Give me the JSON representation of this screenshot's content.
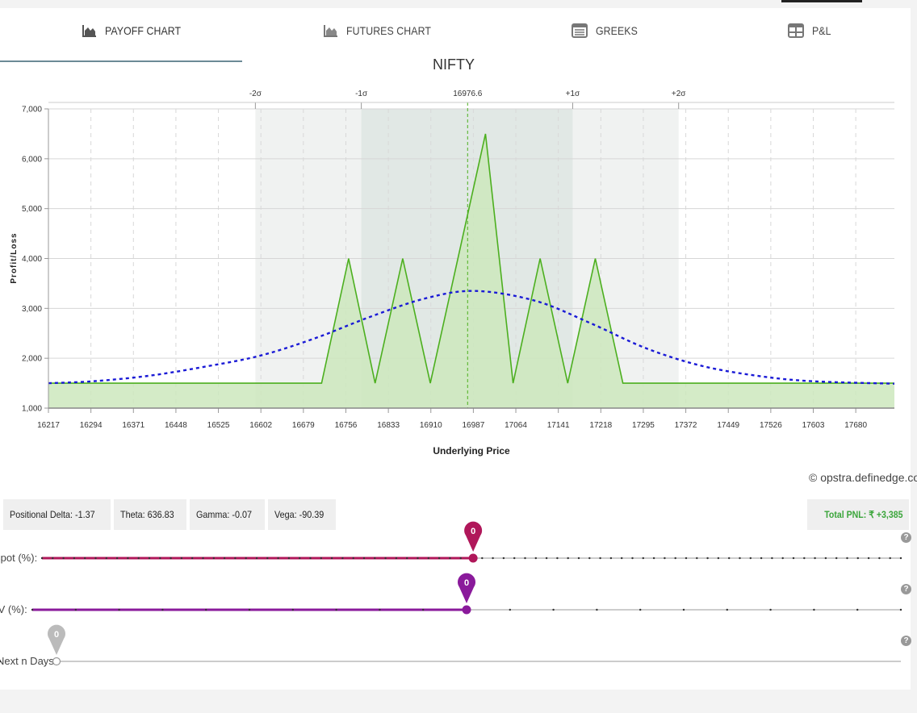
{
  "tabs": [
    {
      "label": "PAYOFF CHART",
      "icon": "area-chart-icon",
      "active": true
    },
    {
      "label": "FUTURES CHART",
      "icon": "area-chart-icon",
      "active": false
    },
    {
      "label": "GREEKS",
      "icon": "table-icon",
      "active": false
    },
    {
      "label": "P&L",
      "icon": "grid-icon",
      "active": false
    }
  ],
  "chart_data": {
    "type": "area",
    "title": "NIFTY",
    "xlabel": "Underlying Price",
    "ylabel": "Profit/Loss",
    "xlim": [
      16217,
      17750
    ],
    "ylim": [
      1000,
      7000
    ],
    "x_ticks": [
      16217,
      16294,
      16371,
      16448,
      16525,
      16602,
      16679,
      16756,
      16833,
      16910,
      16987,
      17064,
      17141,
      17218,
      17295,
      17372,
      17449,
      17526,
      17603,
      17680
    ],
    "y_ticks": [
      1000,
      2000,
      3000,
      4000,
      5000,
      6000,
      7000
    ],
    "y_tick_labels": [
      "1,000",
      "2,000",
      "3,000",
      "4,000",
      "5,000",
      "6,000",
      "7,000"
    ],
    "grid": true,
    "spot_marker": {
      "x": 16976.6,
      "label": "16976.6"
    },
    "sigma_lines": [
      {
        "label": "-2σ",
        "x": 16592
      },
      {
        "label": "-1σ",
        "x": 16784
      },
      {
        "label": "+1σ",
        "x": 17167
      },
      {
        "label": "+2σ",
        "x": 17359
      }
    ],
    "series": [
      {
        "kind": "payoff",
        "color": "#4caf1f",
        "fill": "#cce8bd",
        "x": [
          16217,
          16712,
          16761,
          16809,
          16859,
          16909,
          16979,
          17009,
          17059,
          17108,
          17158,
          17208,
          17258,
          17308,
          17750
        ],
        "y": [
          1500,
          1500,
          4000,
          1500,
          4000,
          1500,
          5000,
          6500,
          1500,
          4000,
          1500,
          4000,
          1500,
          1500,
          1500
        ]
      },
      {
        "kind": "probability_curve",
        "color": "#1a1ad6",
        "x": [
          16217,
          16300,
          16400,
          16500,
          16600,
          16700,
          16800,
          16900,
          16990,
          17100,
          17200,
          17300,
          17400,
          17500,
          17600,
          17750
        ],
        "y": [
          1500,
          1540,
          1650,
          1830,
          2050,
          2400,
          2830,
          3200,
          3350,
          3150,
          2700,
          2200,
          1850,
          1650,
          1540,
          1490
        ]
      }
    ]
  },
  "credit": "© opstra.definedge.com",
  "stats": {
    "delta": "Positional Delta: -1.37",
    "theta": "Theta: 636.83",
    "gamma": "Gamma: -0.07",
    "vega": "Vega: -90.39"
  },
  "total_pnl": "Total PNL: ₹ +3,385",
  "sliders": [
    {
      "label": "Spot (%):",
      "value": "0",
      "position": 0.502,
      "color": "#b0175a",
      "ticks": 80
    },
    {
      "label": "IV (%):",
      "value": "0",
      "position": 0.5,
      "color": "#8a1a9b",
      "ticks": 20
    },
    {
      "label": "Next n Days:",
      "value": "0",
      "position": 0,
      "color": "#bbbbbb",
      "ticks": 0
    }
  ],
  "colors": {
    "sigma1_band": "#e1e8e5",
    "sigma2_band": "#f0f2f1",
    "pnl_text": "#3aa53a"
  }
}
